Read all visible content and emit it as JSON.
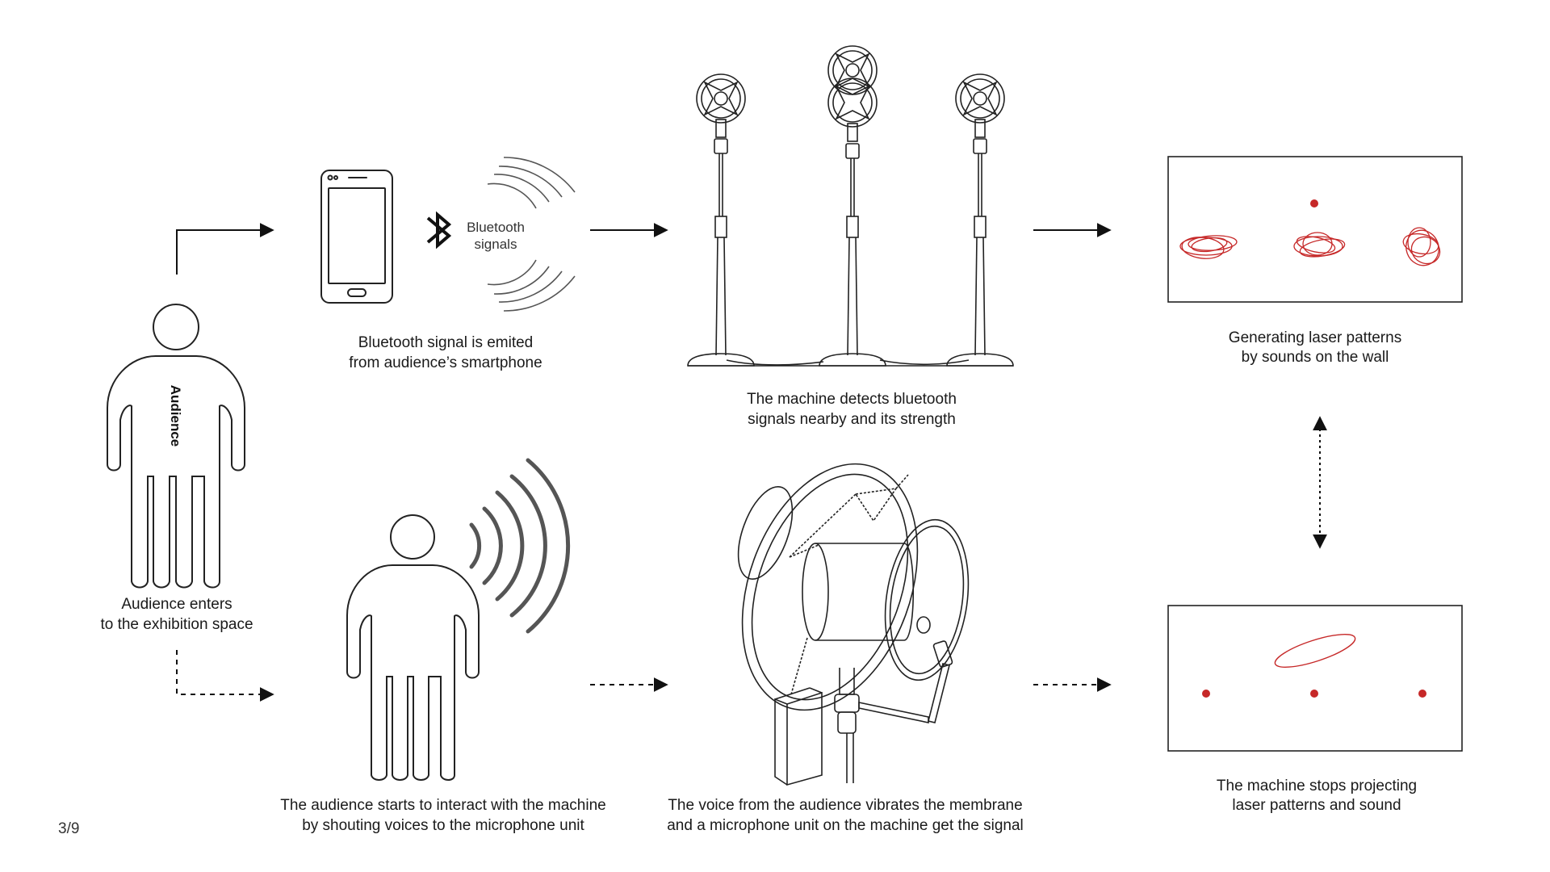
{
  "page_number": "3/9",
  "colors": {
    "line": "#1a1a1a",
    "laser": "#c62828",
    "stroke_gray": "#555555"
  },
  "person_label": "Audience",
  "bluetooth_label": [
    "Bluetooth",
    "signals"
  ],
  "captions": {
    "audience_enters": [
      "Audience enters",
      "to the exhibition space"
    ],
    "bluetooth_emitted": [
      "Bluetooth signal is emited",
      "from audience’s smartphone"
    ],
    "machine_detects": [
      "The machine detects bluetooth",
      "signals nearby and its strength"
    ],
    "generating_patterns": [
      "Generating laser patterns",
      "by sounds on the wall"
    ],
    "audience_interacts": [
      "The audience starts to interact with the machine",
      "by shouting voices to the microphone unit"
    ],
    "voice_vibrates": [
      "The voice from the audience vibrates the membrane",
      "and a microphone unit on the machine get the signal"
    ],
    "machine_stops": [
      "The machine stops projecting",
      "laser patterns and sound"
    ]
  },
  "icons": [
    "person-icon",
    "smartphone-icon",
    "bluetooth-icon",
    "signal-waves-icon",
    "microphone-stand-icon",
    "sound-waves-icon",
    "membrane-machine-icon",
    "laser-dot-icon",
    "laser-scribble-icon",
    "laser-ellipse-icon"
  ]
}
